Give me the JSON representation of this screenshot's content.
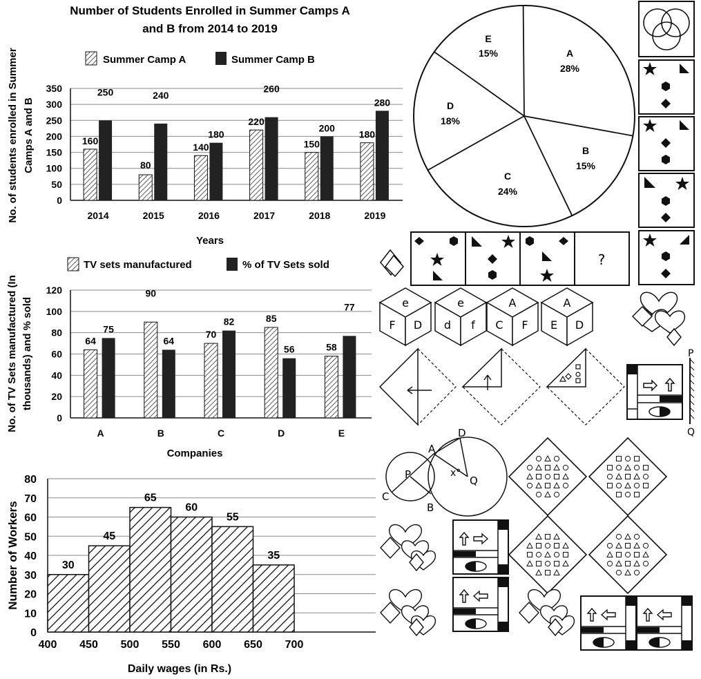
{
  "colors": {
    "ink": "#111111",
    "dark_bar": "#222222",
    "hatch": "#333333",
    "background": "#ffffff"
  },
  "chart_data": [
    {
      "type": "bar",
      "title_line1": "Number of Students Enrolled in Summer Camps A",
      "title_line2": "and B from 2014 to 2019",
      "categories": [
        "2014",
        "2015",
        "2016",
        "2017",
        "2018",
        "2019"
      ],
      "series": [
        {
          "name": "Summer Camp A",
          "values": [
            160,
            80,
            140,
            220,
            150,
            180
          ],
          "style": "hatched"
        },
        {
          "name": "Summer Camp B",
          "values": [
            250,
            240,
            180,
            260,
            200,
            280
          ],
          "style": "solid"
        }
      ],
      "xlabel": "Years",
      "ylabel_line1": "No. of students enrolled in Summer",
      "ylabel_line2": "Camps A and B",
      "ylim": [
        0,
        350
      ],
      "yticks": [
        0,
        50,
        100,
        150,
        200,
        250,
        300,
        350
      ],
      "grid": true,
      "legend_position": "top"
    },
    {
      "type": "bar",
      "categories": [
        "A",
        "B",
        "C",
        "D",
        "E"
      ],
      "series": [
        {
          "name": "TV sets manufactured",
          "values": [
            64,
            90,
            70,
            85,
            58
          ],
          "style": "hatched"
        },
        {
          "name": "% of TV Sets sold",
          "values": [
            75,
            64,
            82,
            56,
            77
          ],
          "style": "solid"
        }
      ],
      "xlabel": "Companies",
      "ylabel_line1": "No. of TV Sets manufactured (In",
      "ylabel_line2": "thousands) and % sold",
      "ylim": [
        0,
        120
      ],
      "yticks": [
        0,
        20,
        40,
        60,
        80,
        100,
        120
      ],
      "grid": true,
      "legend_position": "top"
    },
    {
      "type": "pie",
      "slices": [
        {
          "label": "A",
          "pct_label": "28%",
          "value": 28
        },
        {
          "label": "B",
          "pct_label": "15%",
          "value": 15
        },
        {
          "label": "C",
          "pct_label": "24%",
          "value": 24
        },
        {
          "label": "D",
          "pct_label": "18%",
          "value": 18
        },
        {
          "label": "E",
          "pct_label": "15%",
          "value": 15
        }
      ]
    },
    {
      "type": "bar",
      "subtype": "histogram",
      "bins": [
        {
          "from": 400,
          "to": 450,
          "value": 30
        },
        {
          "from": 450,
          "to": 500,
          "value": 45
        },
        {
          "from": 500,
          "to": 550,
          "value": 65
        },
        {
          "from": 550,
          "to": 600,
          "value": 60
        },
        {
          "from": 600,
          "to": 650,
          "value": 55
        },
        {
          "from": 650,
          "to": 700,
          "value": 35
        }
      ],
      "xticks": [
        400,
        450,
        500,
        550,
        600,
        650,
        700
      ],
      "xlabel": "Daily wages (in Rs.)",
      "ylabel": "Number of Workers",
      "ylim": [
        0,
        80
      ],
      "yticks": [
        0,
        10,
        20,
        30,
        40,
        50,
        60,
        70,
        80
      ],
      "grid": true
    }
  ],
  "figures": {
    "series_question_mark": "?",
    "cube_faces": [
      {
        "top": "e",
        "left": "F",
        "right": "D"
      },
      {
        "top": "e",
        "left": "d",
        "right": "f"
      },
      {
        "top": "A",
        "left": "C",
        "right": "F"
      },
      {
        "top": "A",
        "left": "E",
        "right": "D"
      }
    ],
    "mirror_labels": {
      "top": "P",
      "bottom": "Q"
    },
    "circle_labels": {
      "a": "A",
      "b": "B",
      "c": "C",
      "d": "D",
      "p": "P",
      "q": "Q",
      "angle": "x°"
    }
  }
}
